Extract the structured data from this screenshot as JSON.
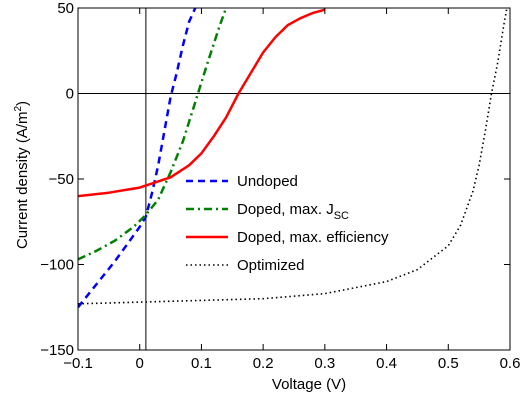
{
  "chart_data": {
    "type": "line",
    "xlabel": "Voltage (V)",
    "ylabel": "Current density (A/m²)",
    "ylabel_parts": {
      "main": "Current density (A/m",
      "sup": "2",
      "close": ")"
    },
    "xlim": [
      -0.1,
      0.6
    ],
    "ylim": [
      -150,
      50
    ],
    "xticks": [
      -0.1,
      0.0,
      0.1,
      0.2,
      0.3,
      0.4,
      0.5,
      0.6
    ],
    "xtick_labels": [
      "−0.1",
      "0",
      "0.1",
      "0.2",
      "0.3",
      "0.4",
      "0.5",
      "0.6"
    ],
    "yticks": [
      -150,
      -100,
      -50,
      0,
      50
    ],
    "ytick_labels": [
      "−150",
      "−100",
      "−50",
      "0",
      "50"
    ],
    "grid": false,
    "reference_lines": {
      "x": 0.01,
      "y": 0
    },
    "legend_position": "center",
    "series": [
      {
        "name": "Undoped",
        "name_parts": {
          "main": "Undoped",
          "sub": ""
        },
        "color": "#0000ff",
        "style": "dashed",
        "x": [
          -0.1,
          -0.08,
          -0.06,
          -0.04,
          -0.02,
          0.0,
          0.01,
          0.02,
          0.03,
          0.04,
          0.05,
          0.06,
          0.07,
          0.08,
          0.09
        ],
        "y": [
          -125,
          -116,
          -107,
          -98,
          -88,
          -78,
          -72,
          -58,
          -42,
          -22,
          -2,
          12,
          28,
          42,
          50
        ]
      },
      {
        "name": "Doped, max. JSC",
        "name_parts": {
          "main": "Doped, max. J",
          "sub": "SC"
        },
        "color": "#008000",
        "style": "dashdot",
        "x": [
          -0.1,
          -0.07,
          -0.04,
          -0.01,
          0.01,
          0.03,
          0.05,
          0.07,
          0.09,
          0.11,
          0.13,
          0.14
        ],
        "y": [
          -97,
          -92,
          -86,
          -78,
          -71,
          -62,
          -46,
          -28,
          -5,
          18,
          40,
          50
        ]
      },
      {
        "name": "Doped, max. efficiency",
        "name_parts": {
          "main": "Doped, max. efficiency",
          "sub": ""
        },
        "color": "#ff0000",
        "style": "solid",
        "x": [
          -0.1,
          -0.05,
          0.0,
          0.05,
          0.08,
          0.1,
          0.12,
          0.14,
          0.16,
          0.18,
          0.2,
          0.22,
          0.24,
          0.26,
          0.28,
          0.3
        ],
        "y": [
          -60,
          -58,
          -55,
          -49,
          -42,
          -35,
          -25,
          -14,
          0,
          12,
          24,
          33,
          40,
          44,
          47,
          49
        ]
      },
      {
        "name": "Optimized",
        "name_parts": {
          "main": "Optimized",
          "sub": ""
        },
        "color": "#000000",
        "style": "dotted",
        "x": [
          -0.1,
          0.0,
          0.1,
          0.2,
          0.3,
          0.4,
          0.45,
          0.5,
          0.52,
          0.54,
          0.55,
          0.56,
          0.57,
          0.58,
          0.59,
          0.595
        ],
        "y": [
          -123,
          -122,
          -121,
          -120,
          -117,
          -110,
          -103,
          -89,
          -77,
          -57,
          -42,
          -22,
          0,
          18,
          40,
          50
        ]
      }
    ]
  }
}
